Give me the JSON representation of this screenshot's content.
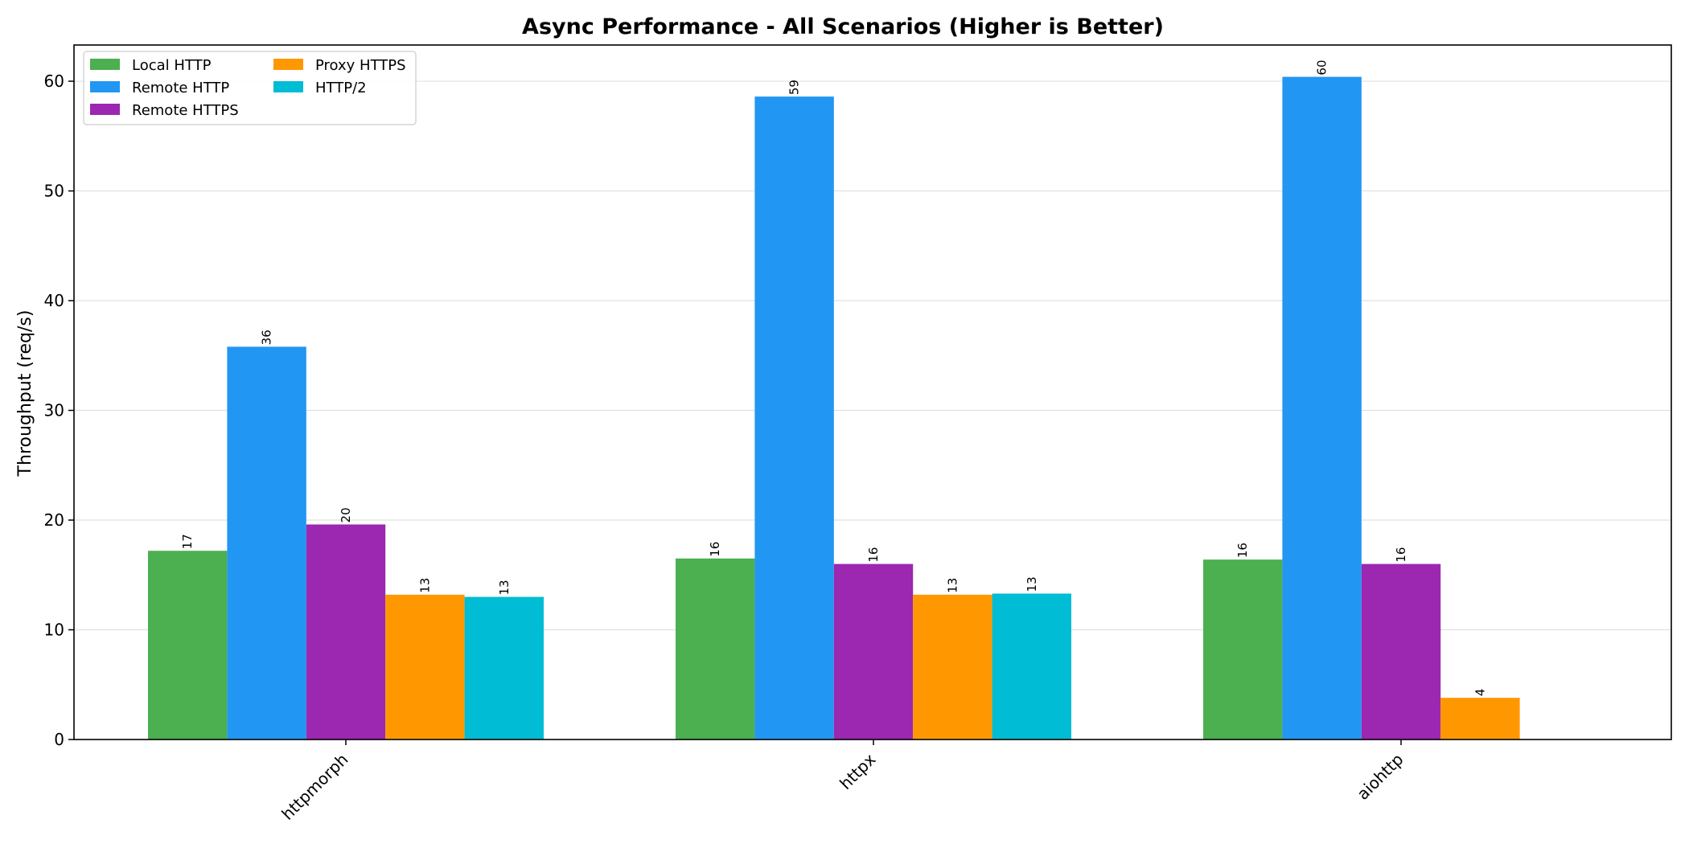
{
  "chart_data": {
    "type": "bar",
    "title": "Async Performance - All Scenarios (Higher is Better)",
    "xlabel": "",
    "ylabel": "Throughput (req/s)",
    "categories": [
      "httpmorph",
      "httpx",
      "aiohttp"
    ],
    "ylim": [
      0,
      63.3
    ],
    "yticks": [
      "0",
      "10",
      "20",
      "30",
      "40",
      "50",
      "60"
    ],
    "grid": "y",
    "legend_position": "top-left",
    "series": [
      {
        "name": "Local HTTP",
        "color": "#4caf50",
        "values": [
          17.2,
          16.5,
          16.4
        ],
        "labels": [
          "17",
          "16",
          "16"
        ]
      },
      {
        "name": "Remote HTTP",
        "color": "#2196f3",
        "values": [
          35.8,
          58.6,
          60.4
        ],
        "labels": [
          "36",
          "59",
          "60"
        ]
      },
      {
        "name": "Remote HTTPS",
        "color": "#9c27b0",
        "values": [
          19.6,
          16.0,
          16.0
        ],
        "labels": [
          "20",
          "16",
          "16"
        ]
      },
      {
        "name": "Proxy HTTPS",
        "color": "#ff9800",
        "values": [
          13.2,
          13.2,
          3.8
        ],
        "labels": [
          "13",
          "13",
          "4"
        ]
      },
      {
        "name": "HTTP/2",
        "color": "#00bcd4",
        "values": [
          13.0,
          13.3,
          null
        ],
        "labels": [
          "13",
          "13",
          ""
        ]
      }
    ]
  }
}
